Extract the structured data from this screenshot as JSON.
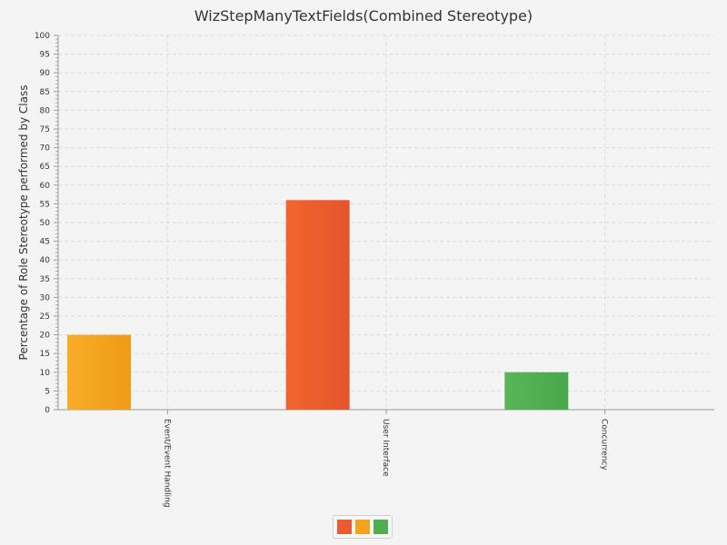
{
  "chart_data": {
    "type": "bar",
    "title": "WizStepManyTextFields(Combined Stereotype)",
    "xlabel": "",
    "ylabel": "Percentage of Role Stereotype performed by Class",
    "ylim": [
      0,
      100
    ],
    "ytick_step": 5,
    "grid": true,
    "legend_position": "bottom",
    "categories": [
      "Event/Event Handling",
      "User Interface",
      "Concurrency"
    ],
    "values": [
      20,
      56,
      10
    ],
    "bar_colors": [
      "#f5a21f",
      "#ee5a2f",
      "#4fae50"
    ],
    "legend_colors": [
      "#ee5a2f",
      "#f5a21f",
      "#4fae50"
    ]
  }
}
